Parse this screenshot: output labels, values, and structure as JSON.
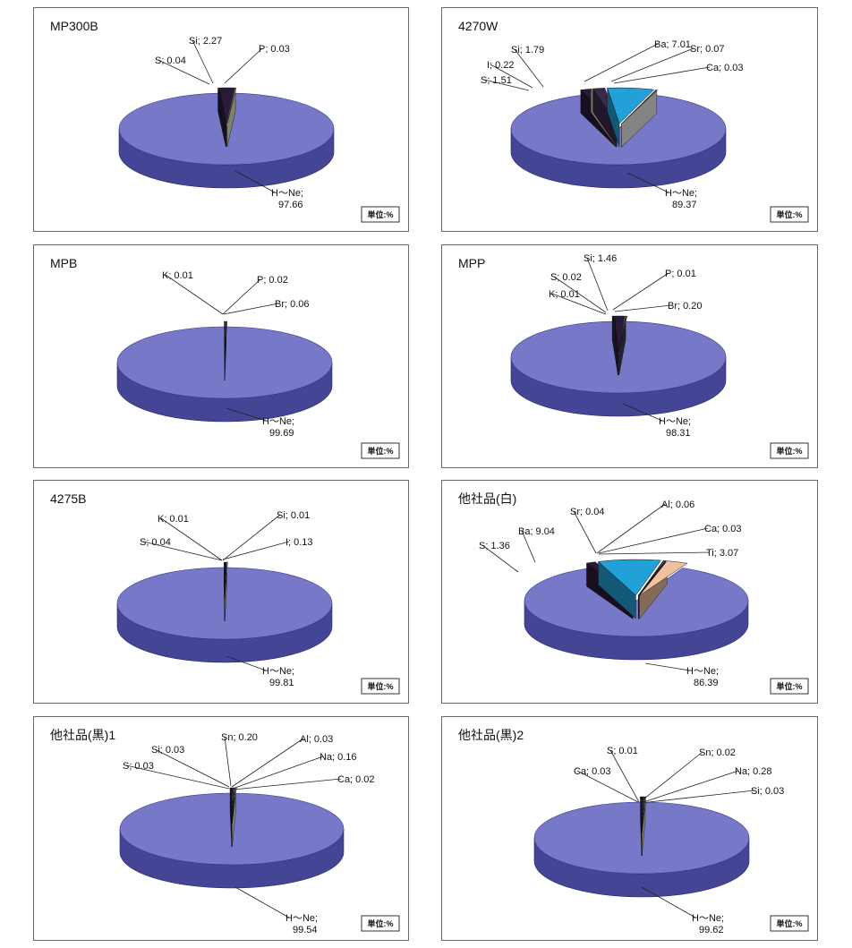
{
  "unit_label": "単位:%",
  "chart_data": [
    {
      "type": "pie",
      "title": "MP300B",
      "slices": [
        {
          "label": "H～Ne;",
          "value": 97.66,
          "value_text": "97.66",
          "color": "#7878c8"
        },
        {
          "label": "S;",
          "value": 0.04,
          "value_text": "0.04",
          "color": "#222244"
        },
        {
          "label": "Si;",
          "value": 2.27,
          "value_text": "2.27",
          "color": "#2a1a3a"
        },
        {
          "label": "P;",
          "value": 0.03,
          "value_text": "0.03",
          "color": "#e8e8c8"
        }
      ]
    },
    {
      "type": "pie",
      "title": "4270W",
      "slices": [
        {
          "label": "H～Ne;",
          "value": 89.37,
          "value_text": "89.37",
          "color": "#7878c8"
        },
        {
          "label": "S;",
          "value": 1.51,
          "value_text": "1.51",
          "color": "#2a1a3a"
        },
        {
          "label": "I;",
          "value": 0.22,
          "value_text": "0.22",
          "color": "#e8e8c0"
        },
        {
          "label": "Si;",
          "value": 1.79,
          "value_text": "1.79",
          "color": "#3a2a4a"
        },
        {
          "label": "Ba;",
          "value": 7.01,
          "value_text": "7.01",
          "color": "#22a0d8"
        },
        {
          "label": "Sr;",
          "value": 0.07,
          "value_text": "0.07",
          "color": "#404060"
        },
        {
          "label": "Ca;",
          "value": 0.03,
          "value_text": "0.03",
          "color": "#f0f0f0"
        }
      ]
    },
    {
      "type": "pie",
      "title": "MPB",
      "slices": [
        {
          "label": "H～Ne;",
          "value": 99.69,
          "value_text": "99.69",
          "color": "#7878c8"
        },
        {
          "label": "K;",
          "value": 0.01,
          "value_text": "0.01",
          "color": "#222244"
        },
        {
          "label": "P;",
          "value": 0.02,
          "value_text": "0.02",
          "color": "#e8e8c8"
        },
        {
          "label": "Br;",
          "value": 0.06,
          "value_text": "0.06",
          "color": "#303050"
        }
      ]
    },
    {
      "type": "pie",
      "title": "MPP",
      "slices": [
        {
          "label": "H～Ne;",
          "value": 98.31,
          "value_text": "98.31",
          "color": "#7878c8"
        },
        {
          "label": "K;",
          "value": 0.01,
          "value_text": "0.01",
          "color": "#222244"
        },
        {
          "label": "S;",
          "value": 0.02,
          "value_text": "0.02",
          "color": "#303050"
        },
        {
          "label": "Si;",
          "value": 1.46,
          "value_text": "1.46",
          "color": "#2a1a3a"
        },
        {
          "label": "P;",
          "value": 0.01,
          "value_text": "0.01",
          "color": "#e8e8c8"
        },
        {
          "label": "Br;",
          "value": 0.2,
          "value_text": "0.20",
          "color": "#404060"
        }
      ]
    },
    {
      "type": "pie",
      "title": "4275B",
      "slices": [
        {
          "label": "H～Ne;",
          "value": 99.81,
          "value_text": "99.81",
          "color": "#7878c8"
        },
        {
          "label": "S;",
          "value": 0.04,
          "value_text": "0.04",
          "color": "#222244"
        },
        {
          "label": "K;",
          "value": 0.01,
          "value_text": "0.01",
          "color": "#303050"
        },
        {
          "label": "Si;",
          "value": 0.01,
          "value_text": "0.01",
          "color": "#2a1a3a"
        },
        {
          "label": "I;",
          "value": 0.13,
          "value_text": "0.13",
          "color": "#e8e8c8"
        }
      ]
    },
    {
      "type": "pie",
      "title": "他社品(白)",
      "slices": [
        {
          "label": "H～Ne;",
          "value": 86.39,
          "value_text": "86.39",
          "color": "#7878c8"
        },
        {
          "label": "S;",
          "value": 1.36,
          "value_text": "1.36",
          "color": "#2a1a3a"
        },
        {
          "label": "Ba;",
          "value": 9.04,
          "value_text": "9.04",
          "color": "#22a0d8"
        },
        {
          "label": "Sr;",
          "value": 0.04,
          "value_text": "0.04",
          "color": "#404060"
        },
        {
          "label": "Al;",
          "value": 0.06,
          "value_text": "0.06",
          "color": "#e8e8c8"
        },
        {
          "label": "Ca;",
          "value": 0.03,
          "value_text": "0.03",
          "color": "#303050"
        },
        {
          "label": "Ti;",
          "value": 3.07,
          "value_text": "3.07",
          "color": "#f0c0a0"
        }
      ]
    },
    {
      "type": "pie",
      "title": "他社品(黒)1",
      "slices": [
        {
          "label": "H～Ne;",
          "value": 99.54,
          "value_text": "99.54",
          "color": "#7878c8"
        },
        {
          "label": "S;",
          "value": 0.03,
          "value_text": "0.03",
          "color": "#222244"
        },
        {
          "label": "Si;",
          "value": 0.03,
          "value_text": "0.03",
          "color": "#2a1a3a"
        },
        {
          "label": "Sn;",
          "value": 0.2,
          "value_text": "0.20",
          "color": "#303050"
        },
        {
          "label": "Al;",
          "value": 0.03,
          "value_text": "0.03",
          "color": "#e8e8c8"
        },
        {
          "label": "Na;",
          "value": 0.16,
          "value_text": "0.16",
          "color": "#404060"
        },
        {
          "label": "Ca;",
          "value": 0.02,
          "value_text": "0.02",
          "color": "#f0f0f0"
        }
      ]
    },
    {
      "type": "pie",
      "title": "他社品(黒)2",
      "slices": [
        {
          "label": "H～Ne;",
          "value": 99.62,
          "value_text": "99.62",
          "color": "#7878c8"
        },
        {
          "label": "Ca;",
          "value": 0.03,
          "value_text": "0.03",
          "color": "#222244"
        },
        {
          "label": "S;",
          "value": 0.01,
          "value_text": "0.01",
          "color": "#2a1a3a"
        },
        {
          "label": "Sn;",
          "value": 0.02,
          "value_text": "0.02",
          "color": "#303050"
        },
        {
          "label": "Na;",
          "value": 0.28,
          "value_text": "0.28",
          "color": "#404060"
        },
        {
          "label": "Si;",
          "value": 0.03,
          "value_text": "0.03",
          "color": "#e8e8c8"
        }
      ]
    }
  ]
}
